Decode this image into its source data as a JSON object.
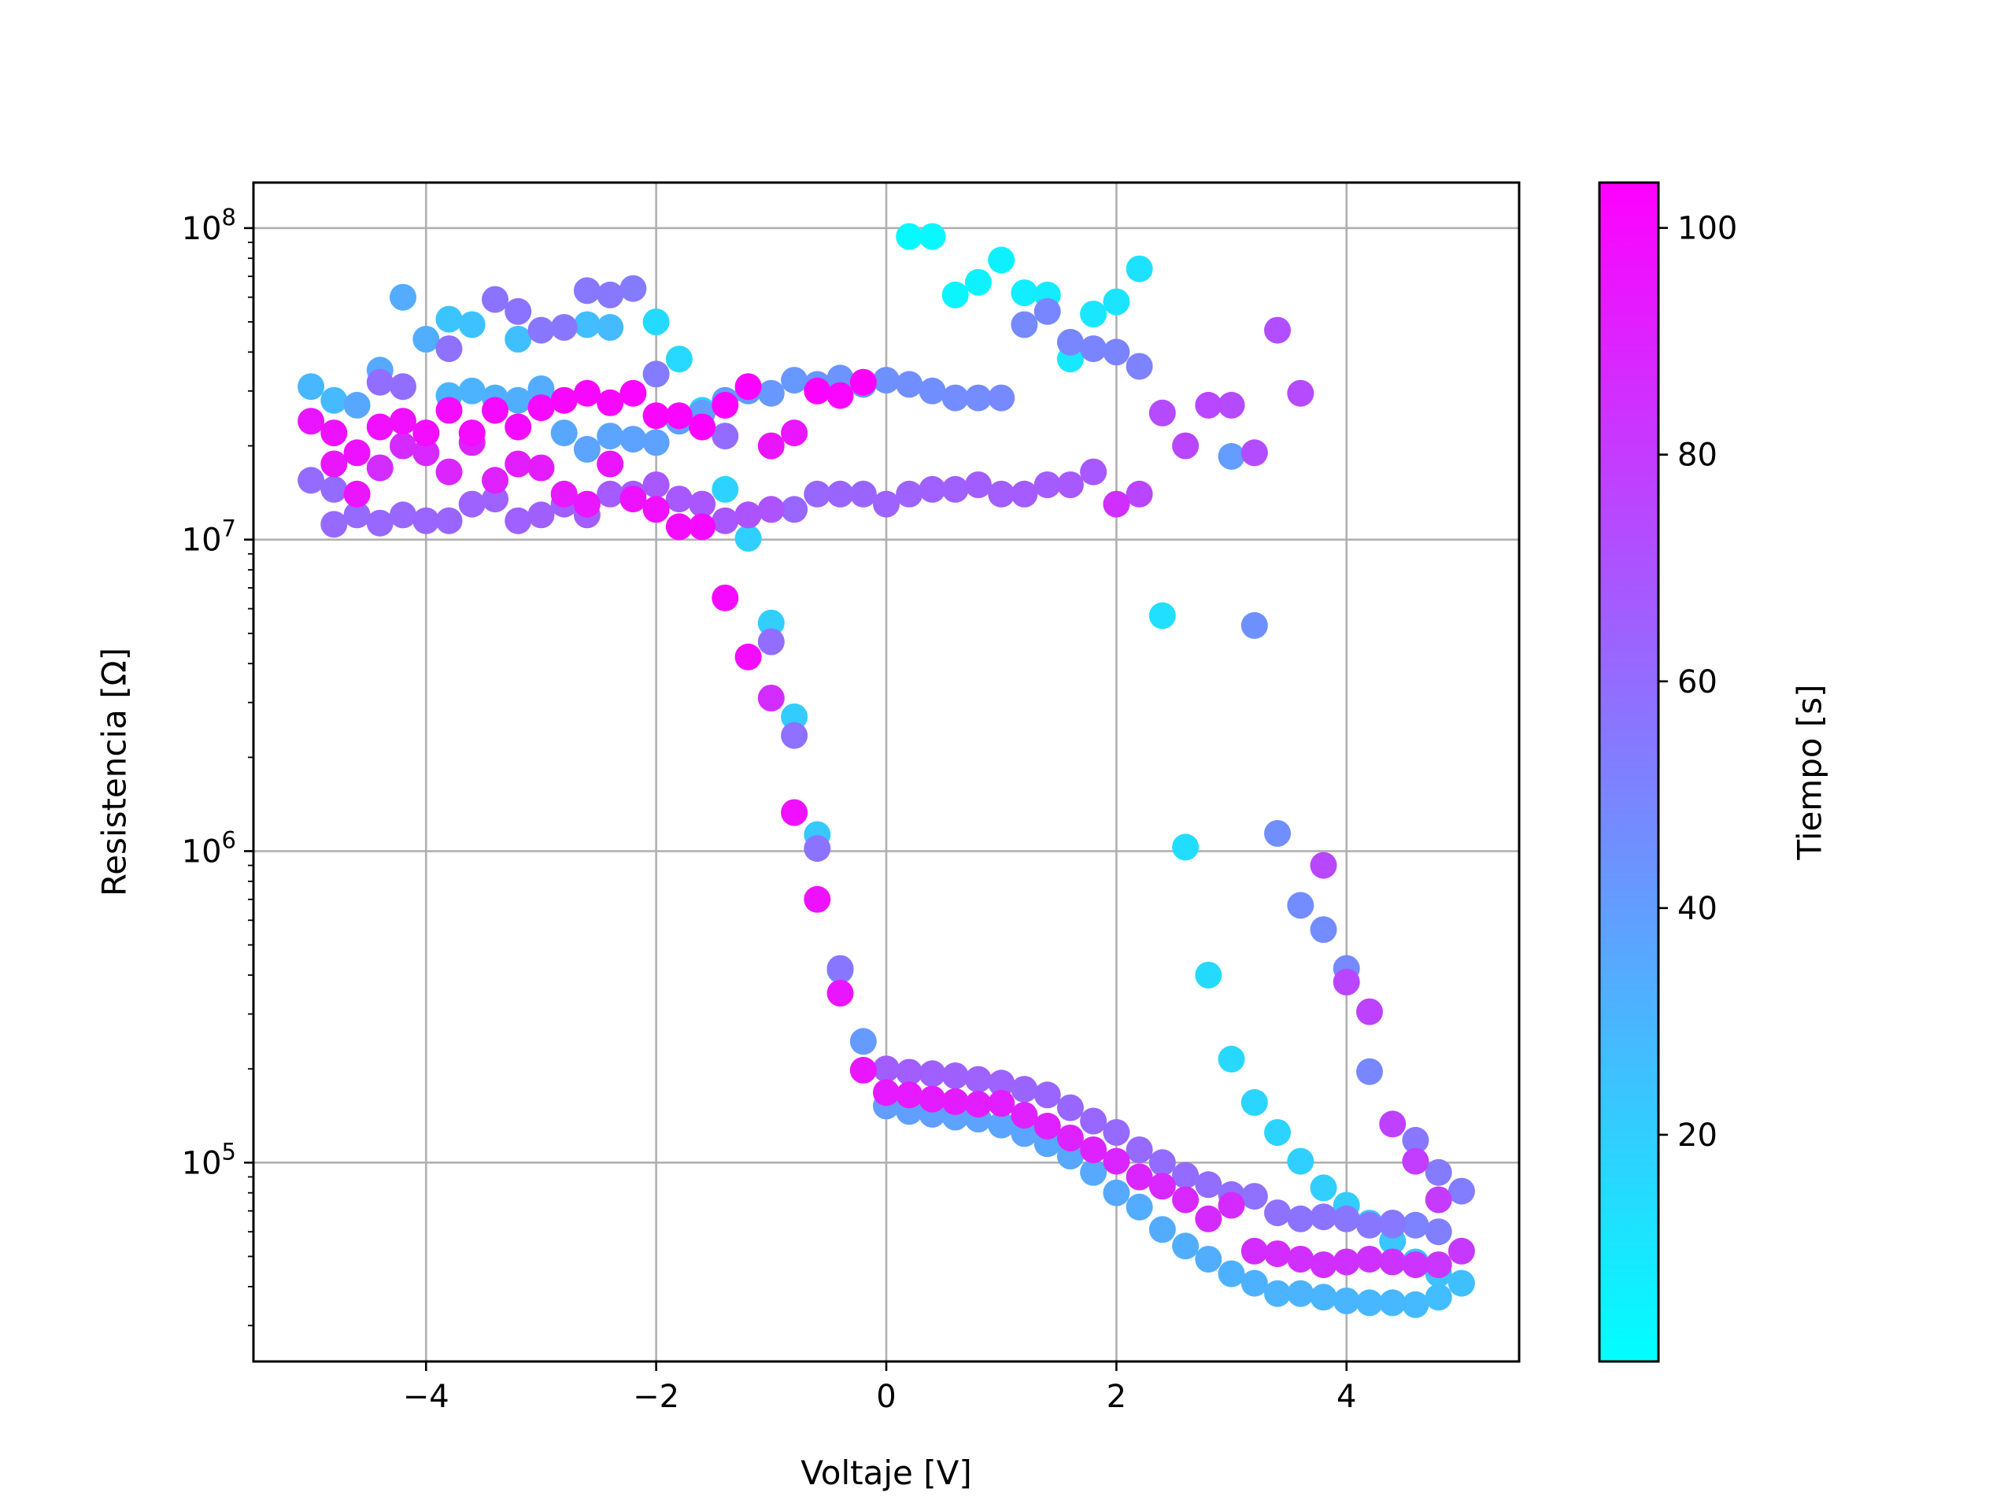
{
  "chart_data": {
    "type": "scatter",
    "title": "",
    "xlabel": "Voltaje [V]",
    "ylabel": "Resistencia [Ω]",
    "xscale": "linear",
    "yscale": "log",
    "xlim": [
      -5.5,
      5.5
    ],
    "ylim": [
      23000,
      140000000
    ],
    "x_ticks": [
      {
        "value": -4,
        "label": "−4"
      },
      {
        "value": -2,
        "label": "−2"
      },
      {
        "value": 0,
        "label": "0"
      },
      {
        "value": 2,
        "label": "2"
      },
      {
        "value": 4,
        "label": "4"
      }
    ],
    "y_ticks": [
      {
        "value": 100000,
        "base": "10",
        "exp": "5"
      },
      {
        "value": 1000000,
        "base": "10",
        "exp": "6"
      },
      {
        "value": 10000000,
        "base": "10",
        "exp": "7"
      },
      {
        "value": 100000000,
        "base": "10",
        "exp": "8"
      }
    ],
    "grid": true,
    "colorbar": {
      "label": "Tiempo [s]",
      "colormap": "cool",
      "range": [
        0,
        104
      ],
      "ticks": [
        {
          "value": 20,
          "label": "20"
        },
        {
          "value": 40,
          "label": "40"
        },
        {
          "value": 60,
          "label": "60"
        },
        {
          "value": 80,
          "label": "80"
        },
        {
          "value": 100,
          "label": "100"
        }
      ]
    },
    "colors": {
      "cmap_low": "#00ffff",
      "cmap_high": "#ff00ff",
      "grid": "#b0b0b0",
      "axes": "#000000"
    },
    "points_format": [
      "voltage_V",
      "resistance_ohm",
      "time_s"
    ],
    "points": [
      [
        0.2,
        94000000,
        2
      ],
      [
        0.4,
        94000000,
        3
      ],
      [
        0.6,
        61000000,
        4
      ],
      [
        0.8,
        67000000,
        5
      ],
      [
        1.0,
        79000000,
        6
      ],
      [
        1.2,
        62000000,
        7
      ],
      [
        1.4,
        61000000,
        8
      ],
      [
        1.6,
        38000000,
        9
      ],
      [
        1.8,
        53000000,
        10
      ],
      [
        2.0,
        58000000,
        11
      ],
      [
        2.2,
        74000000,
        12
      ],
      [
        2.4,
        5700000,
        13
      ],
      [
        2.6,
        1030000,
        14
      ],
      [
        2.8,
        400000,
        15
      ],
      [
        3.0,
        215000,
        16
      ],
      [
        3.2,
        156000,
        17
      ],
      [
        3.4,
        125000,
        18
      ],
      [
        3.6,
        101000,
        19
      ],
      [
        3.8,
        83000,
        20
      ],
      [
        4.0,
        73000,
        21
      ],
      [
        4.2,
        64000,
        22
      ],
      [
        4.4,
        56000,
        23
      ],
      [
        4.6,
        48000,
        24
      ],
      [
        4.8,
        44000,
        25
      ],
      [
        5.0,
        41000,
        26
      ],
      [
        4.8,
        37000,
        27
      ],
      [
        4.6,
        35000,
        28
      ],
      [
        4.4,
        35500,
        29
      ],
      [
        4.2,
        35500,
        29
      ],
      [
        4.0,
        36000,
        30
      ],
      [
        3.8,
        37000,
        30
      ],
      [
        3.6,
        38000,
        31
      ],
      [
        3.4,
        38000,
        31
      ],
      [
        3.2,
        41000,
        32
      ],
      [
        3.0,
        44000,
        32
      ],
      [
        2.8,
        49000,
        33
      ],
      [
        2.6,
        54000,
        33
      ],
      [
        2.4,
        61000,
        34
      ],
      [
        2.2,
        72000,
        34
      ],
      [
        2.0,
        80000,
        35
      ],
      [
        1.8,
        93000,
        35
      ],
      [
        1.6,
        105000,
        36
      ],
      [
        1.4,
        115000,
        36
      ],
      [
        1.2,
        124000,
        37
      ],
      [
        1.0,
        132000,
        37
      ],
      [
        0.8,
        138000,
        38
      ],
      [
        0.6,
        140000,
        38
      ],
      [
        0.4,
        143000,
        39
      ],
      [
        0.2,
        146000,
        39
      ],
      [
        0.0,
        152000,
        40
      ],
      [
        -0.2,
        245000,
        41
      ],
      [
        -0.4,
        415000,
        42
      ],
      [
        -0.6,
        1130000,
        22
      ],
      [
        -0.8,
        2700000,
        21
      ],
      [
        -1.0,
        5400000,
        20
      ],
      [
        -1.2,
        10100000,
        19
      ],
      [
        -1.4,
        14500000,
        18
      ],
      [
        -1.6,
        26000000,
        17
      ],
      [
        -1.8,
        38000000,
        16
      ],
      [
        -2.0,
        50000000,
        15
      ],
      [
        -2.4,
        48000000,
        28
      ],
      [
        -2.6,
        49000000,
        27
      ],
      [
        -3.2,
        44000000,
        26
      ],
      [
        -3.6,
        49000000,
        25
      ],
      [
        -3.8,
        51000000,
        24
      ],
      [
        -4.0,
        44000000,
        33
      ],
      [
        -4.2,
        60000000,
        34
      ],
      [
        -4.4,
        35000000,
        35
      ],
      [
        -4.6,
        27000000,
        36
      ],
      [
        -4.8,
        28000000,
        28
      ],
      [
        -5.0,
        31000000,
        29
      ],
      [
        -3.8,
        29000000,
        30
      ],
      [
        -3.6,
        30000000,
        31
      ],
      [
        -3.4,
        28500000,
        32
      ],
      [
        -3.2,
        28000000,
        33
      ],
      [
        -3.0,
        30500000,
        34
      ],
      [
        -2.8,
        22000000,
        36
      ],
      [
        -2.6,
        19500000,
        37
      ],
      [
        -2.4,
        21500000,
        37
      ],
      [
        -2.2,
        21000000,
        38
      ],
      [
        -2.0,
        20500000,
        38
      ],
      [
        -1.8,
        24000000,
        39
      ],
      [
        -1.6,
        25500000,
        40
      ],
      [
        -1.4,
        28000000,
        40
      ],
      [
        -1.2,
        30000000,
        41
      ],
      [
        -1.0,
        29500000,
        42
      ],
      [
        -0.8,
        32500000,
        42
      ],
      [
        -0.6,
        31500000,
        43
      ],
      [
        -0.4,
        33000000,
        44
      ],
      [
        -0.2,
        31500000,
        44
      ],
      [
        0.0,
        32500000,
        45
      ],
      [
        0.2,
        31500000,
        46
      ],
      [
        0.4,
        30000000,
        46
      ],
      [
        0.6,
        28500000,
        47
      ],
      [
        0.8,
        28500000,
        47
      ],
      [
        1.0,
        28500000,
        48
      ],
      [
        1.2,
        49000000,
        48
      ],
      [
        1.4,
        54000000,
        49
      ],
      [
        1.6,
        43000000,
        49
      ],
      [
        1.8,
        41000000,
        50
      ],
      [
        2.0,
        40000000,
        50
      ],
      [
        2.2,
        36000000,
        51
      ],
      [
        3.0,
        18500000,
        40
      ],
      [
        3.2,
        5300000,
        45
      ],
      [
        3.4,
        1140000,
        46
      ],
      [
        3.6,
        670000,
        47
      ],
      [
        3.8,
        560000,
        47
      ],
      [
        4.0,
        420000,
        48
      ],
      [
        4.2,
        196000,
        49
      ],
      [
        4.4,
        63000,
        50
      ],
      [
        4.6,
        63000,
        51
      ],
      [
        4.8,
        60000,
        52
      ],
      [
        5.0,
        81000,
        53
      ],
      [
        4.8,
        93000,
        54
      ],
      [
        4.6,
        118000,
        55
      ],
      [
        4.4,
        64000,
        55
      ],
      [
        4.2,
        63000,
        56
      ],
      [
        4.0,
        66000,
        56
      ],
      [
        3.8,
        67000,
        57
      ],
      [
        3.6,
        66000,
        57
      ],
      [
        3.4,
        69000,
        58
      ],
      [
        3.2,
        78000,
        58
      ],
      [
        3.0,
        79000,
        59
      ],
      [
        2.8,
        85000,
        59
      ],
      [
        2.6,
        91000,
        60
      ],
      [
        2.4,
        100000,
        60
      ],
      [
        2.2,
        110000,
        61
      ],
      [
        2.0,
        125000,
        61
      ],
      [
        1.8,
        136000,
        62
      ],
      [
        1.6,
        150000,
        62
      ],
      [
        1.4,
        165000,
        63
      ],
      [
        1.2,
        172000,
        63
      ],
      [
        1.0,
        180000,
        64
      ],
      [
        0.8,
        185000,
        64
      ],
      [
        0.6,
        190000,
        65
      ],
      [
        0.4,
        193000,
        65
      ],
      [
        0.2,
        195000,
        66
      ],
      [
        0.0,
        200000,
        66
      ],
      [
        -0.4,
        420000,
        56
      ],
      [
        -0.6,
        1020000,
        57
      ],
      [
        -0.8,
        2350000,
        58
      ],
      [
        -1.0,
        4700000,
        59
      ],
      [
        -1.4,
        21500000,
        60
      ],
      [
        -1.2,
        12000000,
        61
      ],
      [
        -1.0,
        12500000,
        61
      ],
      [
        -0.8,
        12500000,
        62
      ],
      [
        -0.6,
        14000000,
        62
      ],
      [
        -0.4,
        14000000,
        63
      ],
      [
        -0.2,
        14000000,
        63
      ],
      [
        0.0,
        13000000,
        64
      ],
      [
        0.2,
        14000000,
        64
      ],
      [
        0.4,
        14500000,
        65
      ],
      [
        0.6,
        14500000,
        65
      ],
      [
        0.8,
        15000000,
        66
      ],
      [
        1.0,
        14000000,
        66
      ],
      [
        1.2,
        14000000,
        67
      ],
      [
        1.4,
        15000000,
        67
      ],
      [
        1.6,
        15000000,
        68
      ],
      [
        1.8,
        16500000,
        68
      ],
      [
        2.0,
        13000000,
        85
      ],
      [
        2.2,
        14000000,
        76
      ],
      [
        2.4,
        25500000,
        74
      ],
      [
        2.6,
        20000000,
        76
      ],
      [
        2.8,
        27000000,
        75
      ],
      [
        3.0,
        27000000,
        74
      ],
      [
        3.2,
        19000000,
        73
      ],
      [
        3.4,
        47000000,
        72
      ],
      [
        3.6,
        29500000,
        74
      ],
      [
        3.8,
        900000,
        75
      ],
      [
        4.0,
        380000,
        76
      ],
      [
        4.2,
        305000,
        77
      ],
      [
        4.4,
        133000,
        78
      ],
      [
        4.6,
        101000,
        79
      ],
      [
        4.8,
        76000,
        80
      ],
      [
        5.0,
        52000,
        81
      ],
      [
        4.8,
        47000,
        82
      ],
      [
        4.6,
        47000,
        83
      ],
      [
        4.4,
        48000,
        83
      ],
      [
        4.2,
        49000,
        84
      ],
      [
        4.0,
        48000,
        84
      ],
      [
        3.8,
        47000,
        85
      ],
      [
        3.6,
        49000,
        85
      ],
      [
        3.4,
        51000,
        86
      ],
      [
        3.2,
        52000,
        86
      ],
      [
        3.0,
        73000,
        87
      ],
      [
        2.8,
        66000,
        87
      ],
      [
        2.6,
        76000,
        88
      ],
      [
        2.4,
        84000,
        88
      ],
      [
        2.2,
        90000,
        89
      ],
      [
        2.0,
        101000,
        89
      ],
      [
        1.8,
        110000,
        90
      ],
      [
        1.6,
        120000,
        90
      ],
      [
        1.4,
        131000,
        91
      ],
      [
        1.2,
        142000,
        91
      ],
      [
        1.0,
        155000,
        92
      ],
      [
        0.8,
        154000,
        92
      ],
      [
        0.6,
        157000,
        93
      ],
      [
        0.4,
        160000,
        93
      ],
      [
        0.2,
        165000,
        94
      ],
      [
        0.0,
        168000,
        94
      ],
      [
        -0.2,
        198000,
        95
      ],
      [
        -0.4,
        350000,
        96
      ],
      [
        -0.6,
        700000,
        97
      ],
      [
        -0.8,
        1330000,
        98
      ],
      [
        -1.0,
        3100000,
        86
      ],
      [
        -1.2,
        4200000,
        99
      ],
      [
        -1.4,
        6500000,
        100
      ],
      [
        -1.6,
        11000000,
        100
      ],
      [
        -1.8,
        11000000,
        99
      ],
      [
        -2.0,
        12500000,
        98
      ],
      [
        -2.2,
        13500000,
        97
      ],
      [
        -2.4,
        17500000,
        96
      ],
      [
        -2.6,
        13000000,
        95
      ],
      [
        -2.8,
        14000000,
        94
      ],
      [
        -3.0,
        17000000,
        93
      ],
      [
        -3.2,
        17500000,
        92
      ],
      [
        -3.4,
        15500000,
        91
      ],
      [
        -3.6,
        20500000,
        90
      ],
      [
        -3.8,
        16500000,
        89
      ],
      [
        -4.0,
        19000000,
        88
      ],
      [
        -4.2,
        20000000,
        87
      ],
      [
        -4.4,
        17000000,
        86
      ],
      [
        -4.6,
        14000000,
        96
      ],
      [
        -4.8,
        17500000,
        95
      ],
      [
        -5.0,
        24000000,
        96
      ],
      [
        -4.8,
        22000000,
        97
      ],
      [
        -4.6,
        19000000,
        97
      ],
      [
        -4.4,
        23000000,
        98
      ],
      [
        -4.2,
        24000000,
        98
      ],
      [
        -4.0,
        22000000,
        99
      ],
      [
        -3.8,
        26000000,
        99
      ],
      [
        -3.6,
        22000000,
        99
      ],
      [
        -3.4,
        26000000,
        100
      ],
      [
        -3.2,
        23000000,
        100
      ],
      [
        -3.0,
        26500000,
        100
      ],
      [
        -2.8,
        28000000,
        101
      ],
      [
        -2.6,
        29500000,
        101
      ],
      [
        -2.4,
        27500000,
        101
      ],
      [
        -2.2,
        29500000,
        102
      ],
      [
        -2.0,
        25000000,
        102
      ],
      [
        -1.8,
        25000000,
        102
      ],
      [
        -1.6,
        23000000,
        103
      ],
      [
        -1.4,
        27000000,
        103
      ],
      [
        -1.2,
        31000000,
        103
      ],
      [
        -1.0,
        20000000,
        96
      ],
      [
        -0.8,
        22000000,
        95
      ],
      [
        -0.6,
        30000000,
        103
      ],
      [
        -0.4,
        29000000,
        102
      ],
      [
        -0.2,
        32000000,
        104
      ],
      [
        -1.0,
        12500000,
        70
      ],
      [
        -1.2,
        12000000,
        70
      ],
      [
        -1.4,
        11500000,
        69
      ],
      [
        -1.6,
        13000000,
        69
      ],
      [
        -1.8,
        13500000,
        68
      ],
      [
        -2.0,
        15000000,
        68
      ],
      [
        -2.2,
        14000000,
        67
      ],
      [
        -2.4,
        14000000,
        67
      ],
      [
        -2.6,
        12000000,
        66
      ],
      [
        -2.8,
        13000000,
        66
      ],
      [
        -3.0,
        12000000,
        65
      ],
      [
        -3.2,
        11500000,
        65
      ],
      [
        -3.4,
        13500000,
        64
      ],
      [
        -3.6,
        13000000,
        64
      ],
      [
        -3.8,
        11500000,
        63
      ],
      [
        -4.0,
        11500000,
        63
      ],
      [
        -4.2,
        12000000,
        62
      ],
      [
        -4.4,
        11300000,
        62
      ],
      [
        -4.6,
        12000000,
        61
      ],
      [
        -4.8,
        11200000,
        61
      ],
      [
        -5.0,
        15500000,
        60
      ],
      [
        -4.8,
        14500000,
        60
      ],
      [
        -4.4,
        32000000,
        59
      ],
      [
        -4.2,
        31000000,
        59
      ],
      [
        -3.8,
        41000000,
        58
      ],
      [
        -3.4,
        59000000,
        57
      ],
      [
        -3.2,
        54000000,
        57
      ],
      [
        -3.0,
        47000000,
        56
      ],
      [
        -2.8,
        48000000,
        56
      ],
      [
        -2.6,
        63000000,
        55
      ],
      [
        -2.4,
        61000000,
        55
      ],
      [
        -2.2,
        64000000,
        54
      ],
      [
        -2.0,
        34000000,
        54
      ]
    ]
  }
}
